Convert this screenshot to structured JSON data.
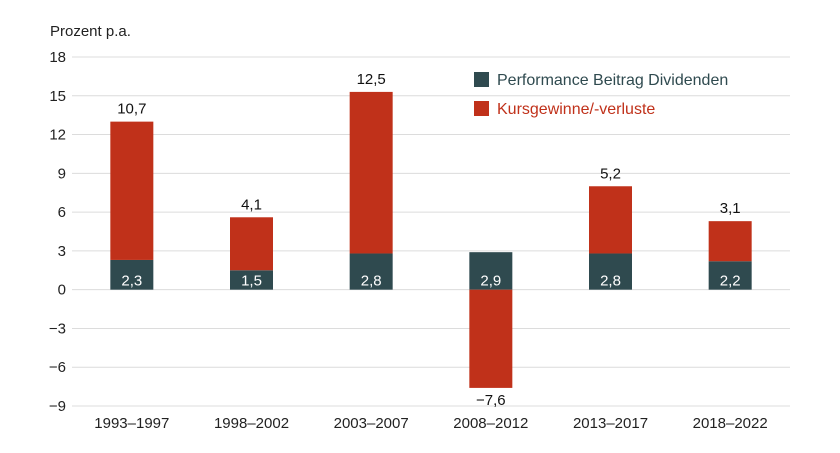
{
  "chart_data": {
    "type": "bar",
    "stacked": true,
    "ylabel": "Prozent p.a.",
    "ylim": [
      -9,
      18
    ],
    "yticks": [
      18,
      15,
      12,
      9,
      6,
      3,
      0,
      -3,
      -6,
      -9
    ],
    "ytick_labels": [
      "18",
      "15",
      "12",
      "9",
      "6",
      "3",
      "0",
      "−3",
      "−6",
      "−9"
    ],
    "categories": [
      "1993–1997",
      "1998–2002",
      "2003–2007",
      "2008–2012",
      "2013–2017",
      "2018–2022"
    ],
    "series": [
      {
        "name": "Performance Beitrag Dividenden",
        "color": "#2f4a4f",
        "values": [
          2.3,
          1.5,
          2.8,
          2.9,
          2.8,
          2.2
        ],
        "labels": [
          "2,3",
          "1,5",
          "2,8",
          "2,9",
          "2,8",
          "2,2"
        ]
      },
      {
        "name": "Kursgewinne/-verluste",
        "color": "#c0311a",
        "values": [
          10.7,
          4.1,
          12.5,
          -7.6,
          5.2,
          3.1
        ],
        "labels": [
          "10,7",
          "4,1",
          "12,5",
          "−7,6",
          "5,2",
          "3,1"
        ]
      }
    ],
    "grid": true,
    "legend_position": "top-right"
  }
}
